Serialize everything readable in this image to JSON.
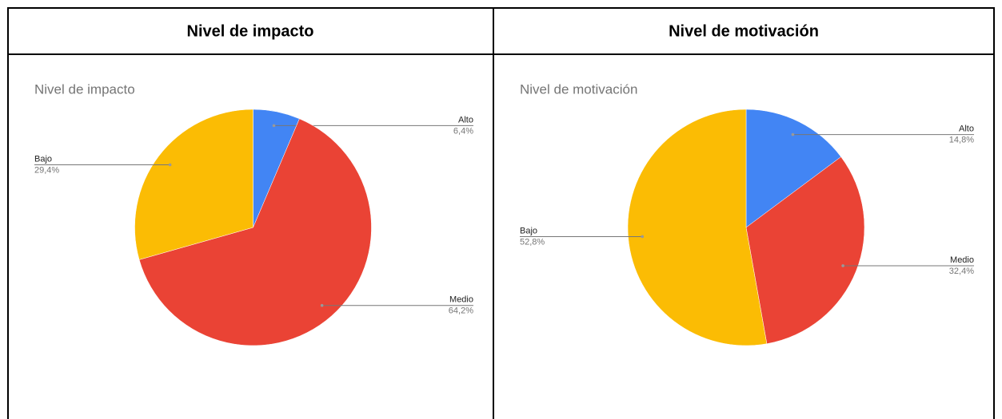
{
  "table": {
    "headers": [
      "Nivel de impacto",
      "Nivel de motivación"
    ]
  },
  "chart_data": [
    {
      "type": "pie",
      "title": "Nivel de impacto",
      "categories": [
        "Alto",
        "Medio",
        "Bajo"
      ],
      "values": [
        6.4,
        64.2,
        29.4
      ],
      "value_labels": [
        "6,4%",
        "64,2%",
        "29,4%"
      ],
      "colors": [
        "#4285f4",
        "#ea4335",
        "#fbbc04"
      ]
    },
    {
      "type": "pie",
      "title": "Nivel de motivación",
      "categories": [
        "Alto",
        "Medio",
        "Bajo"
      ],
      "values": [
        14.8,
        32.4,
        52.8
      ],
      "value_labels": [
        "14,8%",
        "32,4%",
        "52,8%"
      ],
      "colors": [
        "#4285f4",
        "#ea4335",
        "#fbbc04"
      ]
    }
  ]
}
